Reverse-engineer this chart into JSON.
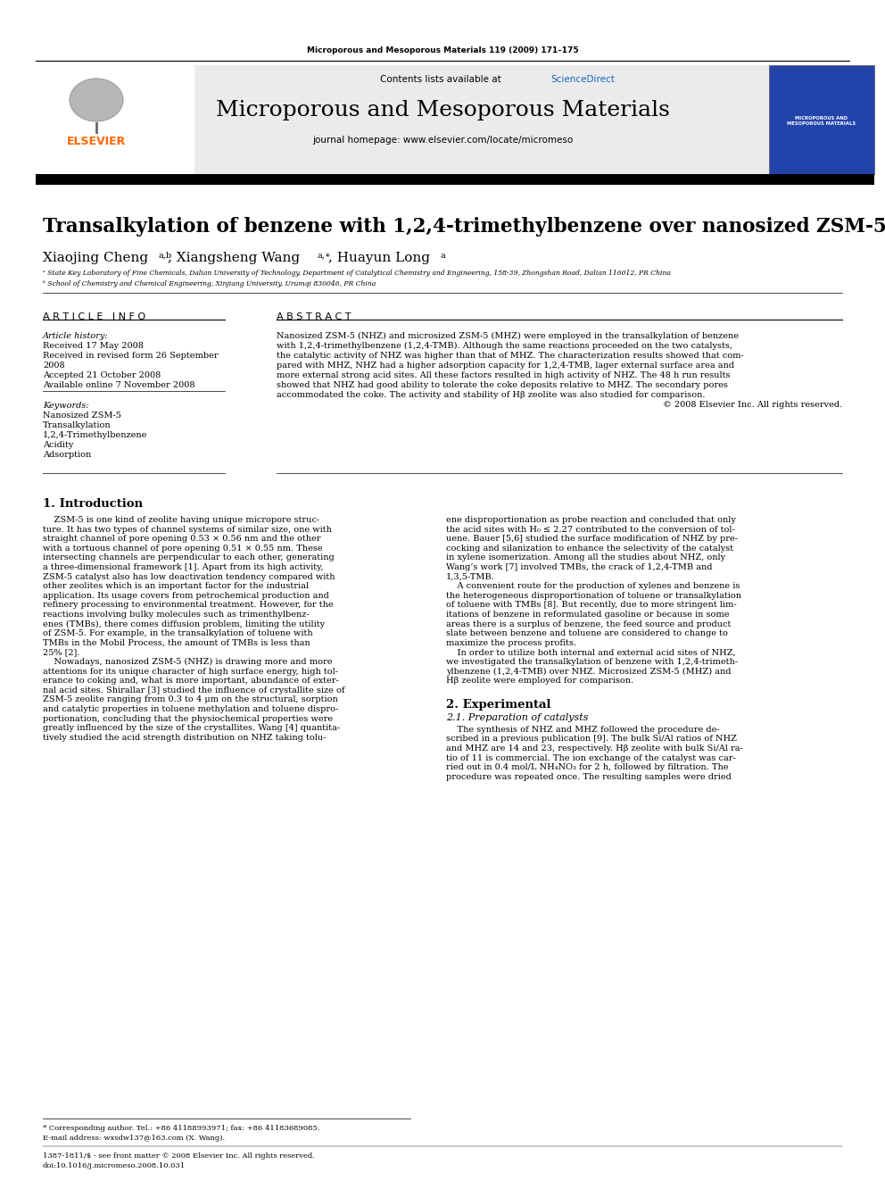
{
  "page_journal": "Microporous and Mesoporous Materials 119 (2009) 171–175",
  "journal_name": "Microporous and Mesoporous Materials",
  "journal_url": "journal homepage: www.elsevier.com/locate/micromeso",
  "contents_line": "Contents lists available at ",
  "sciencedirect": "ScienceDirect",
  "paper_title": "Transalkylation of benzene with 1,2,4-trimethylbenzene over nanosized ZSM-5",
  "affil_a": "ᵃ State Key Laboratory of Fine Chemicals, Dalian University of Technology, Department of Catalytical Chemistry and Engineering, 158-39, Zhongshan Road, Dalian 116012, PR China",
  "affil_b": "ᵇ School of Chemistry and Chemical Engineering, Xinjiang University, Urumqi 830046, PR China",
  "article_history_label": "Article history:",
  "received1": "Received 17 May 2008",
  "received2": "Received in revised form 26 September",
  "received2b": "2008",
  "accepted": "Accepted 21 October 2008",
  "available": "Available online 7 November 2008",
  "keywords_label": "Keywords:",
  "kw1": "Nanosized ZSM-5",
  "kw2": "Transalkylation",
  "kw3": "1,2,4-Trimethylbenzene",
  "kw4": "Acidity",
  "kw5": "Adsorption",
  "copyright": "© 2008 Elsevier Inc. All rights reserved.",
  "intro_title": "1. Introduction",
  "section2_title": "2. Experimental",
  "section21_title": "2.1. Preparation of catalysts",
  "footnote_star": "* Corresponding author. Tel.: +86 41188993971; fax: +86 41183689085.",
  "footnote_email": "E-mail address: wxsdw137@163.com (X. Wang).",
  "footnote_issn": "1387-1811/$ - see front matter © 2008 Elsevier Inc. All rights reserved.",
  "footnote_doi": "doi:10.1016/j.micromeso.2008.10.031",
  "bg_color": "#ffffff",
  "header_bg": "#ebebeb",
  "elsevier_orange": "#FF6600",
  "sciencedirect_blue": "#1565C0",
  "abstract_lines": [
    "Nanosized ZSM-5 (NHZ) and microsized ZSM-5 (MHZ) were employed in the transalkylation of benzene",
    "with 1,2,4-trimethylbenzene (1,2,4-TMB). Although the same reactions proceeded on the two catalysts,",
    "the catalytic activity of NHZ was higher than that of MHZ. The characterization results showed that com-",
    "pared with MHZ, NHZ had a higher adsorption capacity for 1,2,4-TMB, lager external surface area and",
    "more external strong acid sites. All these factors resulted in high activity of NHZ. The 48 h run results",
    "showed that NHZ had good ability to tolerate the coke deposits relative to MHZ. The secondary pores",
    "accommodated the coke. The activity and stability of Hβ zeolite was also studied for comparison."
  ],
  "intro1_lines": [
    "    ZSM-5 is one kind of zeolite having unique micropore struc-",
    "ture. It has two types of channel systems of similar size, one with",
    "straight channel of pore opening 0.53 × 0.56 nm and the other",
    "with a tortuous channel of pore opening 0.51 × 0.55 nm. These",
    "intersecting channels are perpendicular to each other, generating",
    "a three-dimensional framework [1]. Apart from its high activity,",
    "ZSM-5 catalyst also has low deactivation tendency compared with",
    "other zeolites which is an important factor for the industrial",
    "application. Its usage covers from petrochemical production and",
    "refinery processing to environmental treatment. However, for the",
    "reactions involving bulky molecules such as trimenthylbenz-",
    "enes (TMBs), there comes diffusion problem, limiting the utility",
    "of ZSM-5. For example, in the transalkylation of toluene with",
    "TMBs in the Mobil Process, the amount of TMBs is less than",
    "25% [2].",
    "    Nowadays, nanosized ZSM-5 (NHZ) is drawing more and more",
    "attentions for its unique character of high surface energy, high tol-",
    "erance to coking and, what is more important, abundance of exter-",
    "nal acid sites. Shirallar [3] studied the influence of crystallite size of",
    "ZSM-5 zeolite ranging from 0.3 to 4 μm on the structural, sorption",
    "and catalytic properties in toluene methylation and toluene dispro-",
    "portionation, concluding that the physiochemical properties were",
    "greatly influenced by the size of the crystallites. Wang [4] quantita-",
    "tively studied the acid strength distribution on NHZ taking tolu-"
  ],
  "intro2_lines": [
    "ene disproportionation as probe reaction and concluded that only",
    "the acid sites with H₀ ≤ 2.27 contributed to the conversion of tol-",
    "uene. Bauer [5,6] studied the surface modification of NHZ by pre-",
    "cocking and silanization to enhance the selectivity of the catalyst",
    "in xylene isomerization. Among all the studies about NHZ, only",
    "Wang’s work [7] involved TMBs, the crack of 1,2,4-TMB and",
    "1,3,5-TMB.",
    "    A convenient route for the production of xylenes and benzene is",
    "the heterogeneous disproportionation of toluene or transalkylation",
    "of toluene with TMBs [8]. But recently, due to more stringent lim-",
    "itations of benzene in reformulated gasoline or because in some",
    "areas there is a surplus of benzene, the feed source and product",
    "slate between benzene and toluene are considered to change to",
    "maximize the process profits.",
    "    In order to utilize both internal and external acid sites of NHZ,",
    "we investigated the transalkylation of benzene with 1,2,4-trimeth-",
    "ylbenzene (1,2,4-TMB) over NHZ. Microsized ZSM-5 (MHZ) and",
    "Hβ zeolite were employed for comparison."
  ],
  "sec21_lines": [
    "    The synthesis of NHZ and MHZ followed the procedure de-",
    "scribed in a previous publication [9]. The bulk Si/Al ratios of NHZ",
    "and MHZ are 14 and 23, respectively. Hβ zeolite with bulk Si/Al ra-",
    "tio of 11 is commercial. The ion exchange of the catalyst was car-",
    "ried out in 0.4 mol/L NH₄NO₃ for 2 h, followed by filtration. The",
    "procedure was repeated once. The resulting samples were dried"
  ]
}
